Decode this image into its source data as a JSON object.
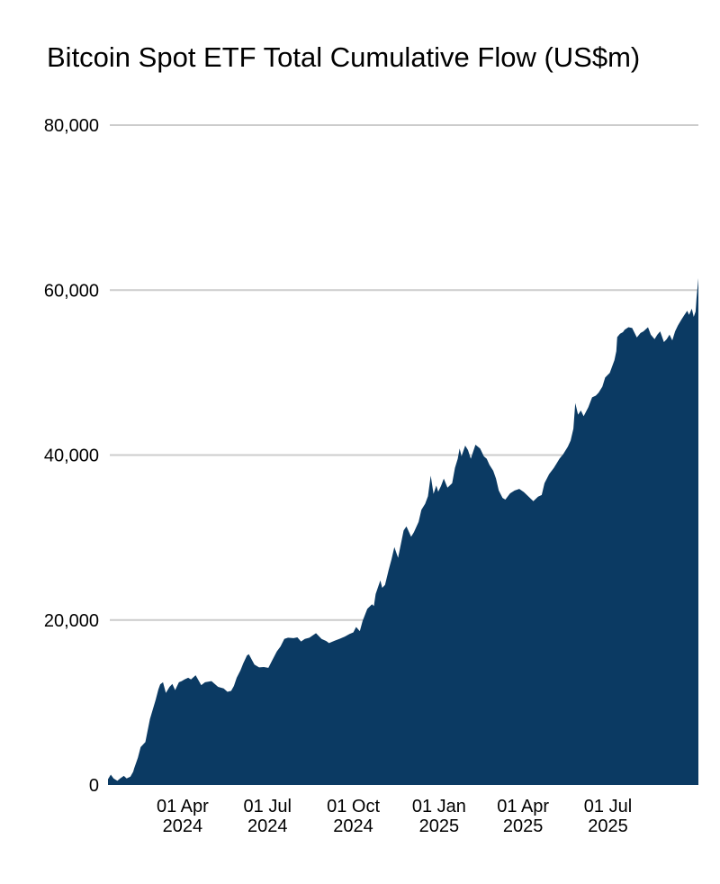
{
  "title": "Bitcoin Spot ETF Total Cumulative Flow (US$m)",
  "chart_data": {
    "type": "area",
    "title": "Bitcoin Spot ETF Total Cumulative Flow (US$m)",
    "xlabel": "",
    "ylabel": "",
    "unit": "US$m",
    "ylim": [
      0,
      80000
    ],
    "grid": "horizontal",
    "legend": "none",
    "colors": {
      "area": "#0b3a63",
      "grid": "#cccccc",
      "text": "#000000",
      "background": "#ffffff"
    },
    "y_ticks": [
      {
        "value": 80000,
        "label": "80,000",
        "gridline": true
      },
      {
        "value": 60000,
        "label": "60,000",
        "gridline": true
      },
      {
        "value": 40000,
        "label": "40,000",
        "gridline": true
      },
      {
        "value": 20000,
        "label": "20,000",
        "gridline": true
      },
      {
        "value": 0,
        "label": "0",
        "gridline": false
      }
    ],
    "x_ticks": [
      {
        "date": "2024-04-01",
        "line1": "01 Apr",
        "line2": "2024"
      },
      {
        "date": "2024-07-01",
        "line1": "01 Jul",
        "line2": "2024"
      },
      {
        "date": "2024-10-01",
        "line1": "01 Oct",
        "line2": "2024"
      },
      {
        "date": "2025-01-01",
        "line1": "01 Jan",
        "line2": "2025"
      },
      {
        "date": "2025-04-01",
        "line1": "01 Apr",
        "line2": "2025"
      },
      {
        "date": "2025-07-01",
        "line1": "01 Jul",
        "line2": "2025"
      }
    ],
    "x_range": {
      "start": "2024-01-12",
      "end": "2025-10-06"
    },
    "series": [
      {
        "name": "Total cumulative flow",
        "points": [
          [
            "2024-01-12",
            700
          ],
          [
            "2024-01-15",
            1250
          ],
          [
            "2024-01-18",
            800
          ],
          [
            "2024-01-22",
            500
          ],
          [
            "2024-01-25",
            800
          ],
          [
            "2024-01-29",
            1100
          ],
          [
            "2024-02-01",
            800
          ],
          [
            "2024-02-05",
            1000
          ],
          [
            "2024-02-08",
            1600
          ],
          [
            "2024-02-09",
            2000
          ],
          [
            "2024-02-13",
            3300
          ],
          [
            "2024-02-16",
            4600
          ],
          [
            "2024-02-21",
            5200
          ],
          [
            "2024-02-23",
            6300
          ],
          [
            "2024-02-26",
            8000
          ],
          [
            "2024-03-03",
            10300
          ],
          [
            "2024-03-06",
            11600
          ],
          [
            "2024-03-08",
            12200
          ],
          [
            "2024-03-11",
            12450
          ],
          [
            "2024-03-14",
            11150
          ],
          [
            "2024-03-18",
            11900
          ],
          [
            "2024-03-21",
            12250
          ],
          [
            "2024-03-24",
            11500
          ],
          [
            "2024-03-28",
            12450
          ],
          [
            "2024-03-31",
            12600
          ],
          [
            "2024-04-03",
            12800
          ],
          [
            "2024-04-07",
            13000
          ],
          [
            "2024-04-10",
            12800
          ],
          [
            "2024-04-15",
            13300
          ],
          [
            "2024-04-21",
            12100
          ],
          [
            "2024-04-25",
            12450
          ],
          [
            "2024-05-02",
            12600
          ],
          [
            "2024-05-09",
            11900
          ],
          [
            "2024-05-15",
            11700
          ],
          [
            "2024-05-19",
            11300
          ],
          [
            "2024-05-23",
            11400
          ],
          [
            "2024-05-26",
            12000
          ],
          [
            "2024-05-29",
            13000
          ],
          [
            "2024-06-02",
            13900
          ],
          [
            "2024-06-05",
            14750
          ],
          [
            "2024-06-09",
            15700
          ],
          [
            "2024-06-11",
            15850
          ],
          [
            "2024-06-17",
            14600
          ],
          [
            "2024-06-22",
            14250
          ],
          [
            "2024-06-27",
            14300
          ],
          [
            "2024-07-02",
            14200
          ],
          [
            "2024-07-06",
            15100
          ],
          [
            "2024-07-11",
            16200
          ],
          [
            "2024-07-15",
            16800
          ],
          [
            "2024-07-19",
            17700
          ],
          [
            "2024-07-23",
            17850
          ],
          [
            "2024-07-29",
            17800
          ],
          [
            "2024-08-02",
            17900
          ],
          [
            "2024-08-06",
            17400
          ],
          [
            "2024-08-10",
            17700
          ],
          [
            "2024-08-15",
            17850
          ],
          [
            "2024-08-22",
            18400
          ],
          [
            "2024-08-28",
            17700
          ],
          [
            "2024-09-02",
            17450
          ],
          [
            "2024-09-05",
            17200
          ],
          [
            "2024-09-11",
            17500
          ],
          [
            "2024-09-17",
            17750
          ],
          [
            "2024-09-22",
            18000
          ],
          [
            "2024-09-27",
            18300
          ],
          [
            "2024-10-01",
            18500
          ],
          [
            "2024-10-04",
            19150
          ],
          [
            "2024-10-08",
            18650
          ],
          [
            "2024-10-11",
            19900
          ],
          [
            "2024-10-16",
            21350
          ],
          [
            "2024-10-21",
            21900
          ],
          [
            "2024-10-23",
            21700
          ],
          [
            "2024-10-25",
            23150
          ],
          [
            "2024-10-30",
            24800
          ],
          [
            "2024-11-01",
            23900
          ],
          [
            "2024-11-04",
            24250
          ],
          [
            "2024-11-08",
            26100
          ],
          [
            "2024-11-11",
            27350
          ],
          [
            "2024-11-14",
            28850
          ],
          [
            "2024-11-18",
            27550
          ],
          [
            "2024-11-21",
            29200
          ],
          [
            "2024-11-24",
            30850
          ],
          [
            "2024-11-27",
            31350
          ],
          [
            "2024-12-02",
            30100
          ],
          [
            "2024-12-05",
            30650
          ],
          [
            "2024-12-10",
            31900
          ],
          [
            "2024-12-13",
            33350
          ],
          [
            "2024-12-17",
            34100
          ],
          [
            "2024-12-20",
            35000
          ],
          [
            "2024-12-23",
            37500
          ],
          [
            "2024-12-26",
            35300
          ],
          [
            "2024-12-29",
            36300
          ],
          [
            "2024-12-31",
            35550
          ],
          [
            "2025-01-03",
            36250
          ],
          [
            "2025-01-06",
            37150
          ],
          [
            "2025-01-10",
            36050
          ],
          [
            "2025-01-15",
            36600
          ],
          [
            "2025-01-18",
            38450
          ],
          [
            "2025-01-21",
            39550
          ],
          [
            "2025-01-23",
            40800
          ],
          [
            "2025-01-25",
            39850
          ],
          [
            "2025-01-29",
            41150
          ],
          [
            "2025-02-01",
            40600
          ],
          [
            "2025-02-04",
            39550
          ],
          [
            "2025-02-09",
            41250
          ],
          [
            "2025-02-14",
            40800
          ],
          [
            "2025-02-18",
            39850
          ],
          [
            "2025-02-21",
            39550
          ],
          [
            "2025-02-24",
            38800
          ],
          [
            "2025-02-28",
            38100
          ],
          [
            "2025-03-03",
            37150
          ],
          [
            "2025-03-06",
            35700
          ],
          [
            "2025-03-10",
            34800
          ],
          [
            "2025-03-13",
            34600
          ],
          [
            "2025-03-18",
            35350
          ],
          [
            "2025-03-23",
            35700
          ],
          [
            "2025-03-28",
            35900
          ],
          [
            "2025-04-02",
            35500
          ],
          [
            "2025-04-07",
            34950
          ],
          [
            "2025-04-12",
            34400
          ],
          [
            "2025-04-17",
            34950
          ],
          [
            "2025-04-21",
            35150
          ],
          [
            "2025-04-24",
            36600
          ],
          [
            "2025-04-29",
            37700
          ],
          [
            "2025-05-04",
            38450
          ],
          [
            "2025-05-07",
            39000
          ],
          [
            "2025-05-10",
            39550
          ],
          [
            "2025-05-14",
            40100
          ],
          [
            "2025-05-19",
            41000
          ],
          [
            "2025-05-22",
            41750
          ],
          [
            "2025-05-25",
            43200
          ],
          [
            "2025-05-27",
            46300
          ],
          [
            "2025-05-30",
            44900
          ],
          [
            "2025-06-02",
            45400
          ],
          [
            "2025-06-05",
            44700
          ],
          [
            "2025-06-10",
            45800
          ],
          [
            "2025-06-14",
            47000
          ],
          [
            "2025-06-18",
            47200
          ],
          [
            "2025-06-21",
            47550
          ],
          [
            "2025-06-25",
            48300
          ],
          [
            "2025-06-28",
            49400
          ],
          [
            "2025-07-03",
            49950
          ],
          [
            "2025-07-08",
            51500
          ],
          [
            "2025-07-10",
            52600
          ],
          [
            "2025-07-11",
            54300
          ],
          [
            "2025-07-14",
            54700
          ],
          [
            "2025-07-17",
            54900
          ],
          [
            "2025-07-19",
            55200
          ],
          [
            "2025-07-23",
            55500
          ],
          [
            "2025-07-27",
            55400
          ],
          [
            "2025-08-01",
            54250
          ],
          [
            "2025-08-05",
            54800
          ],
          [
            "2025-08-08",
            55000
          ],
          [
            "2025-08-13",
            55500
          ],
          [
            "2025-08-16",
            54600
          ],
          [
            "2025-08-20",
            54050
          ],
          [
            "2025-08-23",
            54600
          ],
          [
            "2025-08-26",
            55000
          ],
          [
            "2025-08-30",
            53700
          ],
          [
            "2025-09-02",
            54050
          ],
          [
            "2025-09-05",
            54600
          ],
          [
            "2025-09-08",
            53900
          ],
          [
            "2025-09-11",
            55000
          ],
          [
            "2025-09-14",
            55700
          ],
          [
            "2025-09-18",
            56450
          ],
          [
            "2025-09-21",
            57000
          ],
          [
            "2025-09-24",
            57500
          ],
          [
            "2025-09-26",
            57000
          ],
          [
            "2025-09-29",
            57750
          ],
          [
            "2025-10-01",
            56750
          ],
          [
            "2025-10-03",
            57400
          ],
          [
            "2025-10-04",
            59000
          ],
          [
            "2025-10-06",
            61450
          ]
        ]
      }
    ]
  }
}
